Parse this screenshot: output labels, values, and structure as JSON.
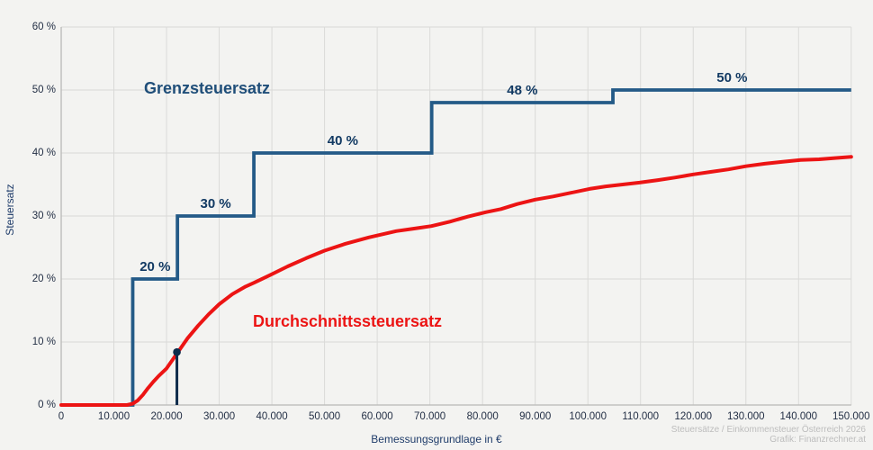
{
  "chart_data": {
    "type": "line",
    "title": "",
    "xlabel": "Bemessungsgrundlage in €",
    "ylabel": "Steuersatz",
    "xlim": [
      0,
      150000
    ],
    "ylim": [
      0,
      60
    ],
    "grid": true,
    "x_ticks": [
      "0",
      "10.000",
      "20.000",
      "30.000",
      "40.000",
      "50.000",
      "60.000",
      "70.000",
      "80.000",
      "90.000",
      "100.000",
      "110.000",
      "120.000",
      "130.000",
      "140.000",
      "150.000"
    ],
    "y_ticks": [
      "0 %",
      "10 %",
      "20 %",
      "30 %",
      "40 %",
      "50 %",
      "60 %"
    ],
    "series": [
      {
        "name": "Grenzsteuersatz",
        "type": "step",
        "color": "#235a87",
        "brackets": [
          {
            "rate": 0,
            "from": 0,
            "to": 13583
          },
          {
            "rate": 20,
            "from": 13583,
            "to": 22070,
            "label": "20 %"
          },
          {
            "rate": 30,
            "from": 22070,
            "to": 36582,
            "label": "30 %"
          },
          {
            "rate": 40,
            "from": 36582,
            "to": 70347,
            "label": "40 %"
          },
          {
            "rate": 48,
            "from": 70347,
            "to": 104752,
            "label": "48 %"
          },
          {
            "rate": 50,
            "from": 104752,
            "to": 150000,
            "label": "50 %"
          }
        ]
      },
      {
        "name": "Durchschnittssteuersatz",
        "type": "line",
        "color": "#ec1414",
        "points": [
          [
            0,
            0
          ],
          [
            5000,
            0
          ],
          [
            10000,
            0
          ],
          [
            12500,
            0
          ],
          [
            13583,
            0.2
          ],
          [
            14500,
            0.7
          ],
          [
            15500,
            1.6
          ],
          [
            16500,
            2.7
          ],
          [
            17500,
            3.7
          ],
          [
            18500,
            4.6
          ],
          [
            20000,
            5.8
          ],
          [
            22000,
            8.2
          ],
          [
            24000,
            10.6
          ],
          [
            26000,
            12.6
          ],
          [
            28000,
            14.4
          ],
          [
            30000,
            16.0
          ],
          [
            32500,
            17.6
          ],
          [
            35000,
            18.8
          ],
          [
            36600,
            19.4
          ],
          [
            39600,
            20.6
          ],
          [
            43000,
            22.0
          ],
          [
            46500,
            23.3
          ],
          [
            50000,
            24.5
          ],
          [
            54000,
            25.6
          ],
          [
            58400,
            26.6
          ],
          [
            63600,
            27.6
          ],
          [
            67000,
            28.0
          ],
          [
            70300,
            28.4
          ],
          [
            73800,
            29.1
          ],
          [
            77200,
            29.9
          ],
          [
            80600,
            30.6
          ],
          [
            83500,
            31.1
          ],
          [
            86600,
            31.9
          ],
          [
            90000,
            32.6
          ],
          [
            93400,
            33.1
          ],
          [
            96900,
            33.7
          ],
          [
            100300,
            34.3
          ],
          [
            103400,
            34.7
          ],
          [
            106600,
            35.0
          ],
          [
            109800,
            35.3
          ],
          [
            113300,
            35.7
          ],
          [
            116500,
            36.1
          ],
          [
            120000,
            36.6
          ],
          [
            123300,
            37.0
          ],
          [
            126700,
            37.4
          ],
          [
            130000,
            37.9
          ],
          [
            133600,
            38.3
          ],
          [
            137000,
            38.6
          ],
          [
            140400,
            38.9
          ],
          [
            143900,
            39.0
          ],
          [
            146900,
            39.2
          ],
          [
            150000,
            39.4
          ]
        ]
      }
    ],
    "marker": {
      "x": 21970,
      "pct": 8.4,
      "color": "#0c2b4b"
    },
    "colors": {
      "background": "#f3f3f1",
      "grid": "#dadad8",
      "axis": "#b9b9b7",
      "tick_text": "#232f45",
      "step_label_text": "#123a63"
    }
  },
  "attribution": {
    "line1": "Steuersätze / Einkommensteuer Österreich 2026",
    "line2": "Grafik: Finanzrechner.at"
  }
}
